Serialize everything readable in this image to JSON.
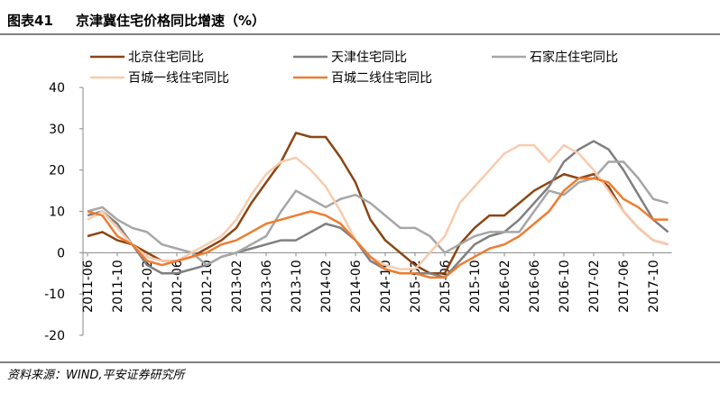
{
  "figure_label": "图表41",
  "source": "资料来源：WIND,平安证券研究所",
  "chart_data": {
    "type": "line",
    "title": "京津冀住宅价格同比增速（%）",
    "categories": [
      "2011-06",
      null,
      "2011-10",
      null,
      "2012-02",
      null,
      "2012-06",
      null,
      "2012-10",
      null,
      "2013-02",
      null,
      "2013-06",
      null,
      "2013-10",
      null,
      "2014-02",
      null,
      "2014-06",
      null,
      "2014-10",
      null,
      "2015-02",
      null,
      "2015-06",
      null,
      "2015-10",
      null,
      "2016-02",
      null,
      "2016-06",
      null,
      "2016-10",
      null,
      "2017-02",
      null,
      "2017-06",
      null,
      "2017-10",
      null
    ],
    "series": [
      {
        "name": "北京住宅同比",
        "color": "#8b4513",
        "values": [
          4,
          5,
          3,
          2,
          0,
          -2,
          -2,
          -1,
          1,
          3,
          6,
          12,
          17,
          22,
          29,
          28,
          28,
          23,
          17,
          8,
          3,
          0,
          -3,
          -5,
          -5,
          2,
          6,
          9,
          9,
          12,
          15,
          17,
          19,
          18,
          19,
          16,
          10,
          6,
          3,
          2
        ]
      },
      {
        "name": "天津住宅同比",
        "color": "#7f7f7f",
        "values": [
          9,
          10,
          7,
          2,
          -3,
          -5,
          -5,
          -4,
          -3,
          -1,
          0,
          1,
          2,
          3,
          3,
          5,
          7,
          6,
          3,
          -2,
          -4,
          -5,
          -5,
          -5,
          -6,
          -2,
          2,
          4,
          5,
          8,
          12,
          16,
          22,
          25,
          27,
          25,
          20,
          14,
          8,
          5
        ]
      },
      {
        "name": "石家庄住宅同比",
        "color": "#a6a6a6",
        "values": [
          10,
          11,
          8,
          6,
          5,
          2,
          1,
          0,
          -3,
          -1,
          0,
          2,
          4,
          10,
          15,
          13,
          11,
          13,
          14,
          12,
          9,
          6,
          6,
          4,
          0,
          2,
          4,
          5,
          5,
          5,
          10,
          15,
          14,
          17,
          18,
          22,
          22,
          18,
          13,
          12
        ]
      },
      {
        "name": "百城一线住宅同比",
        "color": "#f8cbad",
        "values": [
          8,
          10,
          6,
          2,
          -1,
          -2,
          -2,
          0,
          2,
          4,
          8,
          14,
          19,
          22,
          23,
          20,
          16,
          10,
          3,
          -1,
          -3,
          -4,
          -4,
          0,
          4,
          12,
          16,
          20,
          24,
          26,
          26,
          22,
          26,
          24,
          20,
          15,
          10,
          6,
          3,
          2
        ]
      },
      {
        "name": "百城二线住宅同比",
        "color": "#ed7d31",
        "values": [
          10,
          9,
          4,
          2,
          -2,
          -3,
          -2,
          -1,
          0,
          2,
          3,
          5,
          7,
          8,
          9,
          10,
          9,
          7,
          3,
          -1,
          -4,
          -5,
          -5,
          -6,
          -6,
          -3,
          -1,
          1,
          2,
          4,
          7,
          10,
          15,
          18,
          18,
          17,
          13,
          11,
          8,
          8
        ]
      }
    ],
    "ylim": [
      -20,
      40
    ],
    "yticks": [
      -20,
      -10,
      0,
      10,
      20,
      30,
      40
    ],
    "grid": false
  }
}
